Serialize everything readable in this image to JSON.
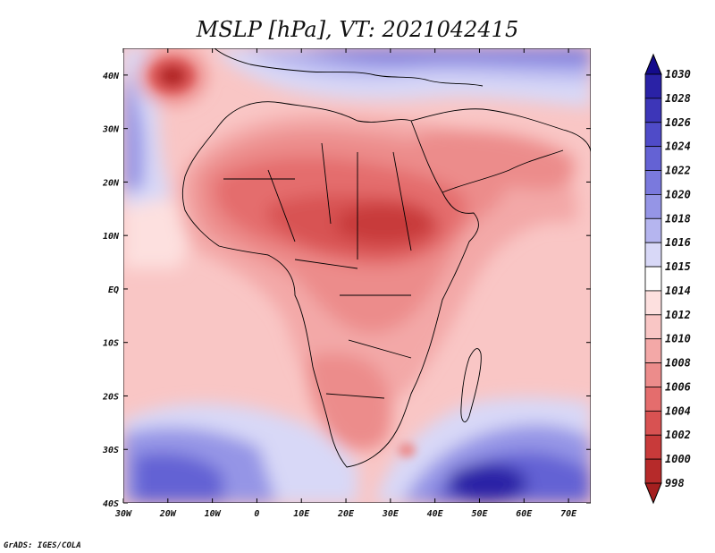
{
  "map": {
    "title": "MSLP [hPa], VT: 2021042415",
    "variable": "MSLP",
    "units": "hPa",
    "valid_time": "2021042415",
    "lon_range": [
      -30,
      75
    ],
    "lat_range": [
      -40,
      45
    ],
    "lon_ticks": [
      "30W",
      "20W",
      "10W",
      "0",
      "10E",
      "20E",
      "30E",
      "40E",
      "50E",
      "60E",
      "70E"
    ],
    "lat_ticks": [
      "40N",
      "30N",
      "20N",
      "10N",
      "EQ",
      "10S",
      "20S",
      "30S",
      "40S"
    ]
  },
  "colorbar": {
    "labels": [
      "1030",
      "1028",
      "1026",
      "1024",
      "1022",
      "1020",
      "1018",
      "1016",
      "1015",
      "1014",
      "1012",
      "1010",
      "1008",
      "1006",
      "1004",
      "1002",
      "1000",
      "998"
    ],
    "colors": [
      "#140b8c",
      "#2a22a6",
      "#3d36b8",
      "#4f4bc8",
      "#6462d4",
      "#7a79dd",
      "#9595e6",
      "#b5b5ef",
      "#d8d8f7",
      "#ffffff",
      "#fde0df",
      "#f9c6c5",
      "#f3a8a7",
      "#ec8c8b",
      "#e46d6d",
      "#d85252",
      "#c83a3a",
      "#b62a2a",
      "#a51f1f"
    ]
  },
  "credit": "GrADS: IGES/COLA"
}
